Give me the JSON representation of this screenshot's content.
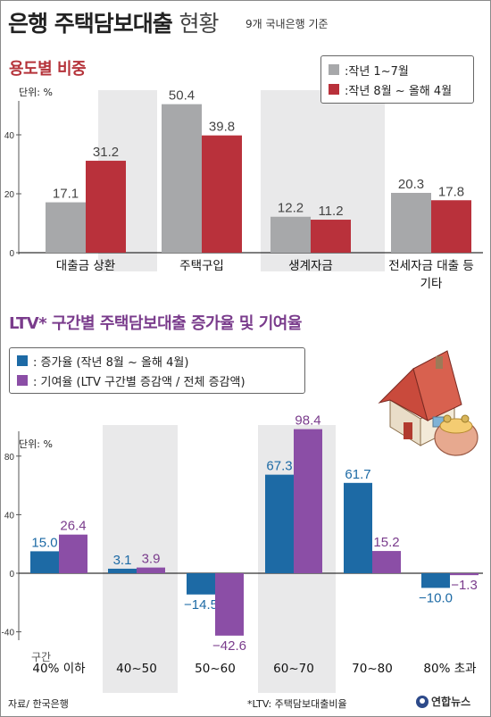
{
  "header": {
    "title_main": "은행 주택담보대출",
    "title_sub": "현황",
    "basis": "9개 국내은행 기준"
  },
  "section1": {
    "title": "용도별 비중",
    "unit": "단위: %",
    "legend": [
      {
        "label": ":작년 1~7월",
        "color": "#a7a8aa"
      },
      {
        "label": ":작년 8월 ~ 올해 4월",
        "color": "#b9313b"
      }
    ]
  },
  "section2": {
    "title": "LTV* 구간별 주택담보대출 증가율 및 기여율",
    "unit": "단위: %",
    "range_label": "구간",
    "legend": [
      {
        "label": ": 증가율 (작년 8월 ~ 올해 4월)",
        "color": "#1d6aa5"
      },
      {
        "label": ": 기여율 (LTV 구간별 증감액 / 전체 증감액)",
        "color": "#8b4ea6"
      }
    ]
  },
  "footer": {
    "source": "자료/ 한국은행",
    "note": "*LTV: 주택담보대출비율",
    "logo": "연합뉴스"
  },
  "chart_data": [
    {
      "type": "bar",
      "title": "용도별 비중",
      "unit": "단위: %",
      "categories": [
        [
          "대출금 상환"
        ],
        [
          "주택구입"
        ],
        [
          "생계자금"
        ],
        [
          "전세자금 대출 등",
          "기타"
        ]
      ],
      "series": [
        {
          "name": ":작년 1~7월",
          "color": "#a7a8aa",
          "values": [
            17.1,
            50.4,
            12.2,
            20.3
          ]
        },
        {
          "name": ":작년 8월 ~ 올해 4월",
          "color": "#b9313b",
          "values": [
            31.2,
            39.8,
            11.2,
            17.8
          ]
        }
      ],
      "ylim": [
        0,
        55
      ],
      "yticks": [
        0,
        20,
        40
      ],
      "grid": false,
      "legend_position": "top-right"
    },
    {
      "type": "bar",
      "title": "LTV* 구간별 주택담보대출 증가율 및 기여율",
      "unit": "단위: %",
      "categories": [
        [
          "40% 이하"
        ],
        [
          "40~50"
        ],
        [
          "50~60"
        ],
        [
          "60~70"
        ],
        [
          "70~80"
        ],
        [
          "80% 초과"
        ]
      ],
      "series": [
        {
          "name": ": 증가율 (작년 8월 ~ 올해 4월)",
          "color": "#1d6aa5",
          "values": [
            15.0,
            3.1,
            -14.5,
            67.3,
            61.7,
            -10.0
          ],
          "labels": [
            "15.0",
            "3.1",
            "−14.5",
            "67.3",
            "61.7",
            "−10.0"
          ]
        },
        {
          "name": ": 기여율 (LTV 구간별 증감액 / 전체 증감액)",
          "color": "#8b4ea6",
          "values": [
            26.4,
            3.9,
            -42.6,
            98.4,
            15.2,
            -1.3
          ],
          "labels": [
            "26.4",
            "3.9",
            "−42.6",
            "98.4",
            "15.2",
            "−1.3"
          ]
        }
      ],
      "ylim": [
        -45,
        100
      ],
      "yticks": [
        -40,
        0,
        40,
        80
      ],
      "grid": false,
      "legend_position": "top-left"
    }
  ],
  "colors": {
    "banded_background": "#e9e9ea",
    "section1_title": "#b5333a",
    "section2_title": "#7a3c8c"
  },
  "icons": [
    "house-illustration",
    "coin-purse-illustration",
    "yonhap-logo-icon"
  ]
}
